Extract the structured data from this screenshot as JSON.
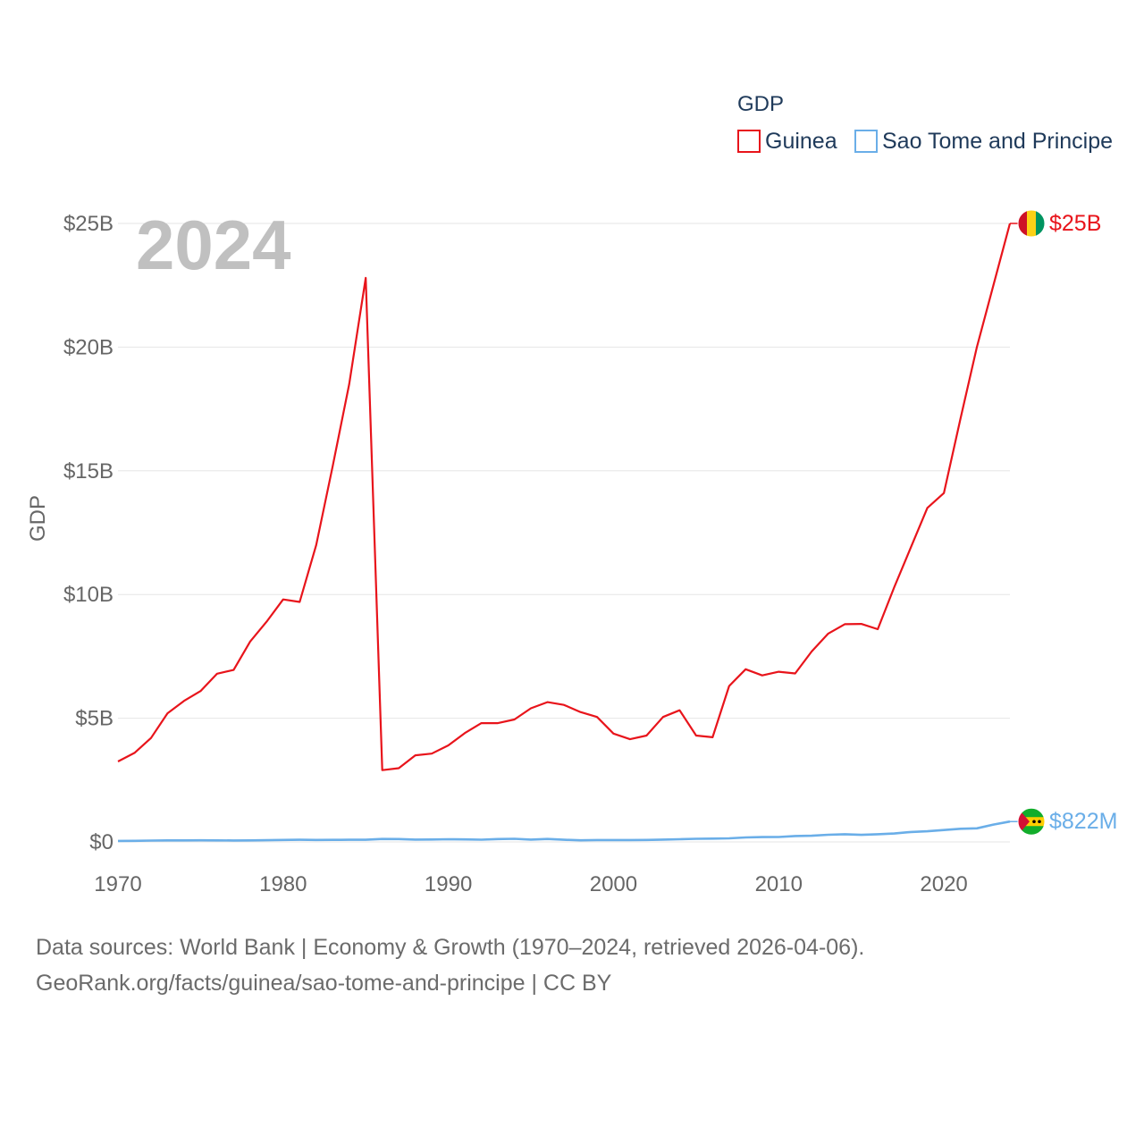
{
  "chart_data": {
    "type": "line",
    "title": "",
    "ylabel": "GDP",
    "xlabel": "",
    "current_year": "2024",
    "ylim": [
      0,
      25000000000
    ],
    "xlim": [
      1970,
      2024
    ],
    "yticks": [
      {
        "value": 0,
        "label": "$0"
      },
      {
        "value": 5000000000,
        "label": "$5B"
      },
      {
        "value": 10000000000,
        "label": "$10B"
      },
      {
        "value": 15000000000,
        "label": "$15B"
      },
      {
        "value": 20000000000,
        "label": "$20B"
      },
      {
        "value": 25000000000,
        "label": "$25B"
      }
    ],
    "xticks": [
      {
        "value": 1970,
        "label": "1970"
      },
      {
        "value": 1980,
        "label": "1980"
      },
      {
        "value": 1990,
        "label": "1990"
      },
      {
        "value": 2000,
        "label": "2000"
      },
      {
        "value": 2010,
        "label": "2010"
      },
      {
        "value": 2020,
        "label": "2020"
      }
    ],
    "legend": {
      "title": "GDP",
      "position": "top-right"
    },
    "x": [
      1970,
      1971,
      1972,
      1973,
      1974,
      1975,
      1976,
      1977,
      1978,
      1979,
      1980,
      1981,
      1982,
      1983,
      1984,
      1985,
      1986,
      1987,
      1988,
      1989,
      1990,
      1991,
      1992,
      1993,
      1994,
      1995,
      1996,
      1997,
      1998,
      1999,
      2000,
      2001,
      2002,
      2003,
      2004,
      2005,
      2006,
      2007,
      2008,
      2009,
      2010,
      2011,
      2012,
      2013,
      2014,
      2015,
      2016,
      2017,
      2018,
      2019,
      2020,
      2021,
      2022,
      2023,
      2024
    ],
    "series": [
      {
        "name": "Guinea",
        "color": "#e8141b",
        "end_label": "$25B",
        "flag_icon": "guinea-flag-icon",
        "values": [
          3250000000,
          3600000000,
          4200000000,
          5200000000,
          5700000000,
          6100000000,
          6800000000,
          6950000000,
          8100000000,
          8900000000,
          9800000000,
          9700000000,
          12000000000,
          15200000000,
          18500000000,
          22800000000,
          2900000000,
          2980000000,
          3500000000,
          3570000000,
          3900000000,
          4400000000,
          4800000000,
          4800000000,
          4950000000,
          5400000000,
          5650000000,
          5540000000,
          5250000000,
          5050000000,
          4380000000,
          4150000000,
          4300000000,
          5050000000,
          5320000000,
          4300000000,
          4230000000,
          6300000000,
          6980000000,
          6730000000,
          6880000000,
          6810000000,
          7700000000,
          8420000000,
          8800000000,
          8810000000,
          8600000000,
          10300000000,
          11900000000,
          13500000000,
          14100000000,
          17100000000,
          20000000000,
          22500000000,
          25000000000
        ]
      },
      {
        "name": "Sao Tome and Principe",
        "color": "#6aaee8",
        "end_label": "$822M",
        "flag_icon": "sao-tome-flag-icon",
        "values": [
          40000000,
          45000000,
          55000000,
          60000000,
          62000000,
          65000000,
          60000000,
          58000000,
          62000000,
          70000000,
          80000000,
          85000000,
          80000000,
          82000000,
          85000000,
          88000000,
          120000000,
          115000000,
          95000000,
          98000000,
          110000000,
          100000000,
          90000000,
          115000000,
          125000000,
          95000000,
          120000000,
          85000000,
          65000000,
          75000000,
          77000000,
          75000000,
          80000000,
          95000000,
          110000000,
          125000000,
          135000000,
          145000000,
          180000000,
          195000000,
          198000000,
          240000000,
          250000000,
          290000000,
          310000000,
          285000000,
          310000000,
          340000000,
          400000000,
          430000000,
          480000000,
          530000000,
          550000000,
          700000000,
          822000000
        ]
      }
    ]
  },
  "source": {
    "line1": "Data sources: World Bank | Economy & Growth (1970–2024, retrieved 2026-04-06).",
    "line2": "GeoRank.org/facts/guinea/sao-tome-and-principe | CC BY"
  }
}
